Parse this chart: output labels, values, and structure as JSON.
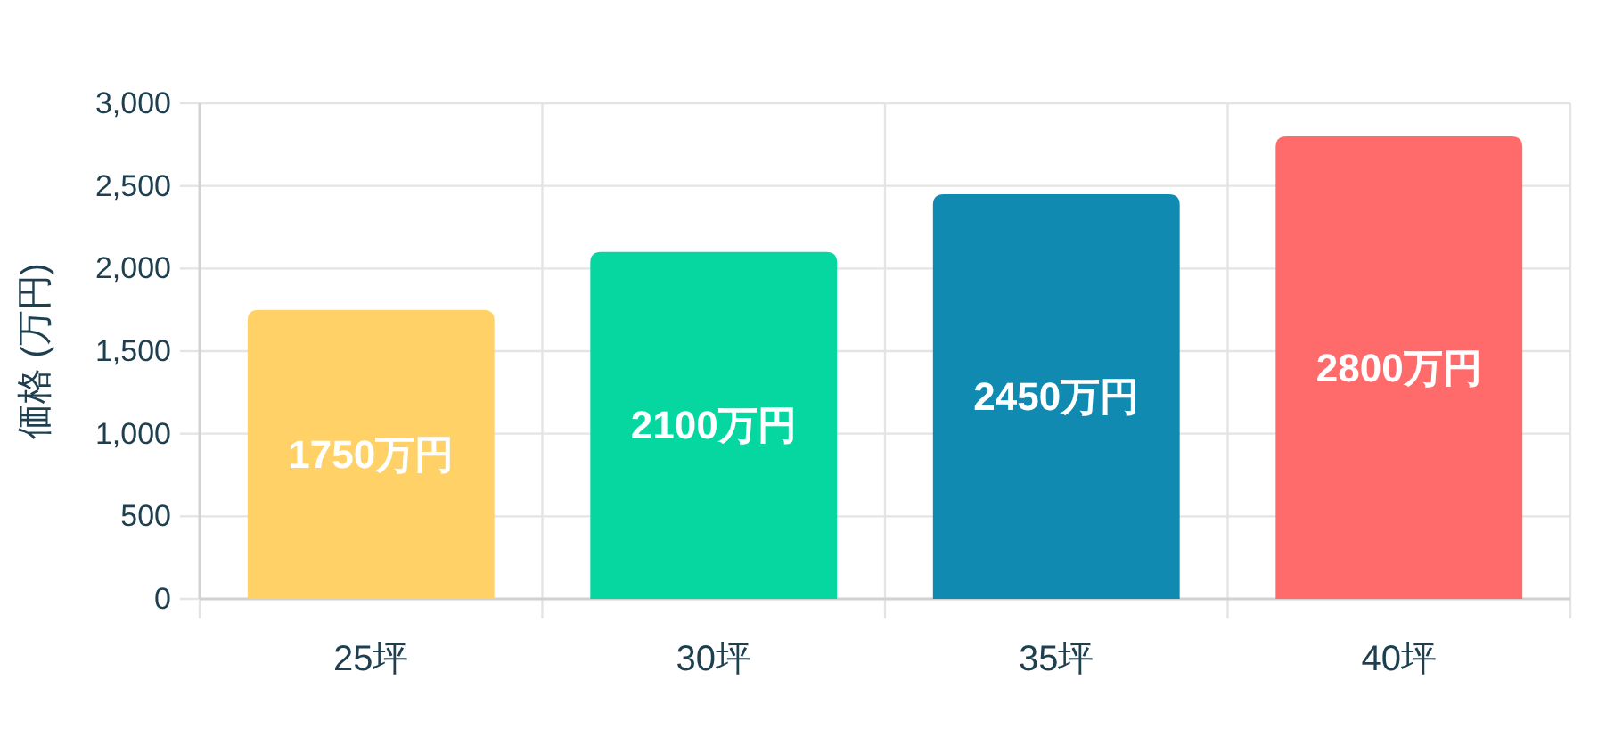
{
  "chart_data": {
    "type": "bar",
    "ylabel": "価格 (万円)",
    "categories": [
      "25坪",
      "30坪",
      "35坪",
      "40坪"
    ],
    "values": [
      1750,
      2100,
      2450,
      2800
    ],
    "colors": [
      "#ffd166",
      "#06d6a0",
      "#118ab2",
      "#ff6b6b"
    ],
    "value_labels": [
      "1750万円",
      "2100万円",
      "2450万円",
      "2800万円"
    ],
    "ylim": [
      0,
      3000
    ],
    "yticks": [
      0,
      500,
      {
        "value": 1000,
        "label": "1,000"
      },
      {
        "value": 1500,
        "label": "1,500"
      },
      {
        "value": 2000,
        "label": "2,000"
      },
      {
        "value": 2500,
        "label": "2,500"
      },
      {
        "value": 3000,
        "label": "3,000"
      }
    ],
    "grid": true
  }
}
